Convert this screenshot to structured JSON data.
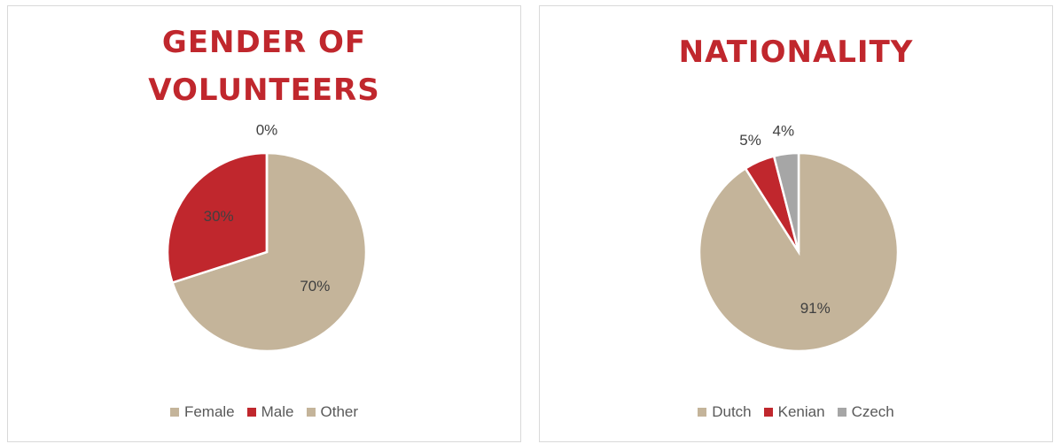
{
  "chart_data": [
    {
      "type": "pie",
      "title": "GENDER OF VOLUNTEERS",
      "categories": [
        "Female",
        "Male",
        "Other"
      ],
      "values": [
        70,
        30,
        0
      ],
      "value_labels": [
        "70%",
        "30%",
        "0%"
      ],
      "colors": [
        "#c4b49a",
        "#c0272d",
        "#c4b49a"
      ]
    },
    {
      "type": "pie",
      "title": "NATIONALITY",
      "categories": [
        "Dutch",
        "Kenian",
        "Czech"
      ],
      "values": [
        91,
        5,
        4
      ],
      "value_labels": [
        "91%",
        "5%",
        "4%"
      ],
      "colors": [
        "#c4b49a",
        "#c0272d",
        "#a6a6a6"
      ]
    }
  ]
}
